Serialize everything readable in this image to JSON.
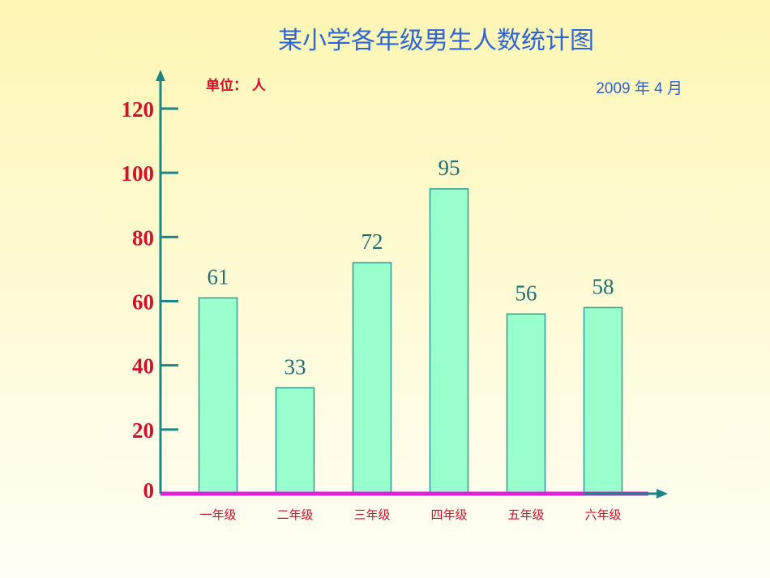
{
  "chart_data": {
    "type": "bar",
    "title": "某小学各年级男生人数统计图",
    "unit_label": "单位： 人",
    "date_label": "2009 年 4 月",
    "categories": [
      "一年级",
      "二年级",
      "三年级",
      "四年级",
      "五年级",
      "六年级"
    ],
    "values": [
      61,
      33,
      72,
      95,
      56,
      58
    ],
    "ylim": [
      0,
      120
    ],
    "yticks": [
      0,
      20,
      40,
      60,
      80,
      100,
      120
    ],
    "grid": false,
    "colors": {
      "bar_fill": "#99ffcc",
      "bar_stroke": "#2e9a94",
      "axis": "#1d8585",
      "baseline": "#e020d8",
      "title": "#2d64d8",
      "tick_labels": "#d40f2c",
      "data_labels": "#1f6e72"
    }
  }
}
